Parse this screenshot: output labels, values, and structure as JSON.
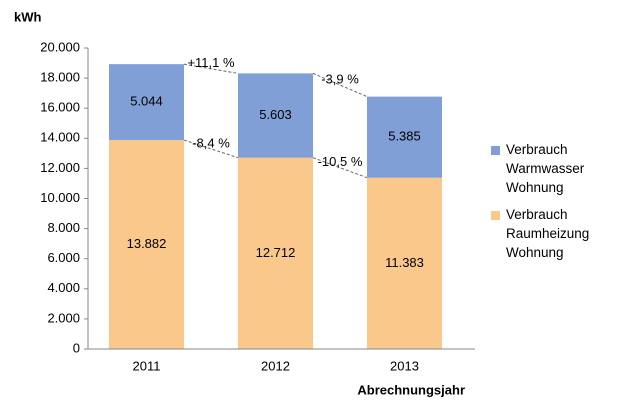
{
  "chart_data": {
    "type": "stacked_bar",
    "y_label": "kWh",
    "x_label": "Abrechnungsjahr",
    "categories": [
      "2011",
      "2012",
      "2013"
    ],
    "series": [
      {
        "name": "Verbrauch Raumheizung Wohnung",
        "color": "#f9c88a",
        "values": [
          13882,
          12712,
          11383
        ],
        "value_labels": [
          "13.882",
          "12.712",
          "11.383"
        ]
      },
      {
        "name": "Verbrauch Warmwasser Wohnung",
        "color": "#7f9fd6",
        "values": [
          5044,
          5603,
          5385
        ],
        "value_labels": [
          "5.044",
          "5.603",
          "5.385"
        ]
      }
    ],
    "annotations": [
      {
        "series": 1,
        "from": 0,
        "text": "+11,1 %"
      },
      {
        "series": 1,
        "from": 1,
        "text": "-3,9 %"
      },
      {
        "series": 0,
        "from": 0,
        "text": "-8,4 %"
      },
      {
        "series": 0,
        "from": 1,
        "text": "-10,5 %"
      }
    ],
    "ylim": [
      0,
      20000
    ],
    "yticks": [
      0,
      {
        "value": 2000,
        "label": "2.000"
      },
      {
        "value": 4000,
        "label": "4.000"
      },
      {
        "value": 6000,
        "label": "6.000"
      },
      {
        "value": 8000,
        "label": "8.000"
      },
      {
        "value": 10000,
        "label": "10.000"
      },
      {
        "value": 12000,
        "label": "12.000"
      },
      {
        "value": 14000,
        "label": "14.000"
      },
      {
        "value": 16000,
        "label": "16.000"
      },
      {
        "value": 18000,
        "label": "18.000"
      },
      {
        "value": 20000,
        "label": "20.000"
      }
    ],
    "grid": false,
    "legend": "right"
  }
}
